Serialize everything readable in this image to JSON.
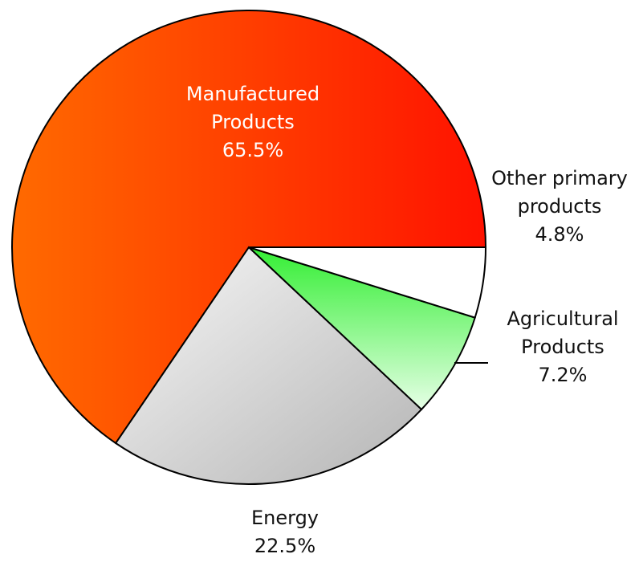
{
  "chart_data": {
    "type": "pie",
    "categories": [
      "Manufactured Products",
      "Energy",
      "Agricultural Products",
      "Other primary products"
    ],
    "values": [
      65.5,
      22.5,
      7.2,
      4.8
    ],
    "value_labels": [
      "65.5%",
      "22.5%",
      "7.2%",
      "4.8%"
    ],
    "colors": [
      [
        "#ff6a00",
        "#ff1200"
      ],
      [
        "#f8f8f8",
        "#b4b4b4"
      ],
      [
        "#33ee33",
        "#e6ffe6"
      ],
      [
        "#ffffff",
        "#ffffff"
      ]
    ]
  }
}
